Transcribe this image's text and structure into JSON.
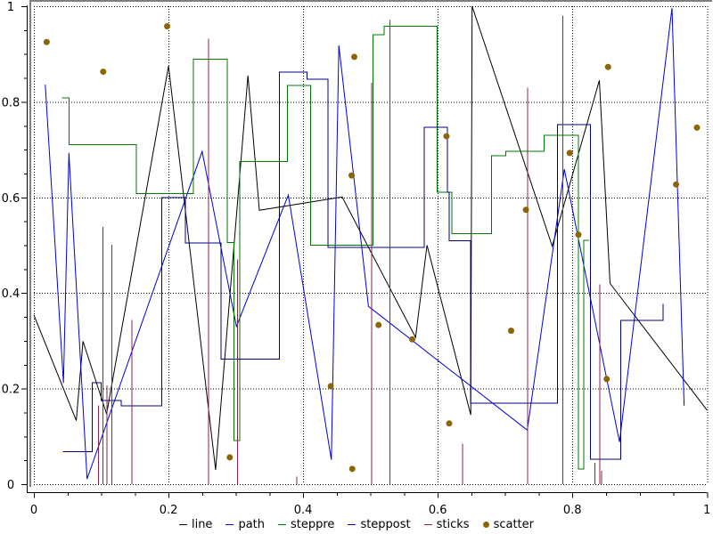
{
  "plot": {
    "frame_color": "#808080",
    "background": "#ffffff",
    "axis_color": "#000000",
    "grid_style": "dotted",
    "tick_label_fontsize": 13
  },
  "axes": {
    "x": {
      "min": 0,
      "max": 1,
      "ticks": [
        0,
        0.2,
        0.4,
        0.6,
        0.8,
        1
      ],
      "tick_labels": [
        "0",
        "0.2",
        "0.4",
        "0.6",
        "0.8",
        "1"
      ],
      "minor_step": 0.05
    },
    "y": {
      "min": 0,
      "max": 1,
      "ticks": [
        0,
        0.2,
        0.4,
        0.6,
        0.8,
        1
      ],
      "tick_labels": [
        "0",
        "0.2",
        "0.4",
        "0.6",
        "0.8",
        "1"
      ],
      "minor_step": 0.05
    }
  },
  "legend": {
    "items": [
      {
        "label": "line",
        "color": "#000000",
        "marker": "dash"
      },
      {
        "label": "path",
        "color": "#0000dd",
        "marker": "dash"
      },
      {
        "label": "steppre",
        "color": "#007700",
        "marker": "dash"
      },
      {
        "label": "steppost",
        "color": "#000080",
        "marker": "dash"
      },
      {
        "label": "sticks",
        "color": "#8b2252",
        "marker": "dash"
      },
      {
        "label": "scatter",
        "color": "#8b6508",
        "marker": "dot"
      }
    ]
  },
  "chart_data": {
    "type": "line",
    "title": "",
    "xlabel": "",
    "ylabel": "",
    "xlim": [
      0,
      1
    ],
    "ylim": [
      0,
      1
    ],
    "grid": "dotted-major",
    "legend_position": "bottom-center",
    "series": [
      {
        "name": "line",
        "style": "line",
        "color": "#000000",
        "points": [
          [
            0.0,
            0.354
          ],
          [
            0.063,
            0.133
          ],
          [
            0.073,
            0.299
          ],
          [
            0.108,
            0.147
          ],
          [
            0.2,
            0.875
          ],
          [
            0.27,
            0.03
          ],
          [
            0.318,
            0.855
          ],
          [
            0.335,
            0.573
          ],
          [
            0.458,
            0.601
          ],
          [
            0.567,
            0.307
          ],
          [
            0.584,
            0.5
          ],
          [
            0.649,
            0.145
          ],
          [
            0.651,
            1.0
          ],
          [
            0.77,
            0.498
          ],
          [
            0.84,
            0.845
          ],
          [
            0.856,
            0.42
          ],
          [
            1.0,
            0.155
          ]
        ]
      },
      {
        "name": "path",
        "style": "path",
        "color": "#0000dd",
        "points": [
          [
            0.017,
            0.836
          ],
          [
            0.044,
            0.212
          ],
          [
            0.052,
            0.693
          ],
          [
            0.079,
            0.011
          ],
          [
            0.25,
            0.696
          ],
          [
            0.301,
            0.33
          ],
          [
            0.378,
            0.605
          ],
          [
            0.442,
            0.051
          ],
          [
            0.453,
            0.918
          ],
          [
            0.497,
            0.372
          ],
          [
            0.733,
            0.113
          ],
          [
            0.788,
            0.659
          ],
          [
            0.87,
            0.088
          ],
          [
            0.948,
            0.996
          ],
          [
            0.966,
            0.164
          ]
        ]
      },
      {
        "name": "steppre",
        "style": "step",
        "color": "#007700",
        "points": [
          [
            0.042,
            0.808
          ],
          [
            0.052,
            0.71
          ],
          [
            0.152,
            0.608
          ],
          [
            0.237,
            0.889
          ],
          [
            0.287,
            0.506
          ],
          [
            0.297,
            0.091
          ],
          [
            0.306,
            0.675
          ],
          [
            0.377,
            0.834
          ],
          [
            0.411,
            0.5
          ],
          [
            0.504,
            0.94
          ],
          [
            0.52,
            0.958
          ],
          [
            0.599,
            0.611
          ],
          [
            0.621,
            0.524
          ],
          [
            0.68,
            0.687
          ],
          [
            0.701,
            0.696
          ],
          [
            0.758,
            0.73
          ],
          [
            0.809,
            0.032
          ],
          [
            0.817,
            0.51
          ],
          [
            0.825,
            0.51
          ]
        ]
      },
      {
        "name": "steppost",
        "style": "step",
        "color": "#000080",
        "points": [
          [
            0.043,
            0.068
          ],
          [
            0.087,
            0.212
          ],
          [
            0.1,
            0.175
          ],
          [
            0.13,
            0.164
          ],
          [
            0.19,
            0.6
          ],
          [
            0.225,
            0.505
          ],
          [
            0.278,
            0.262
          ],
          [
            0.365,
            0.862
          ],
          [
            0.406,
            0.847
          ],
          [
            0.437,
            0.495
          ],
          [
            0.58,
            0.747
          ],
          [
            0.614,
            0.611
          ],
          [
            0.617,
            0.509
          ],
          [
            0.649,
            0.169
          ],
          [
            0.778,
            0.752
          ],
          [
            0.827,
            0.052
          ],
          [
            0.872,
            0.343
          ],
          [
            0.935,
            0.377
          ]
        ]
      },
      {
        "name": "sticks",
        "style": "sticks",
        "color": "#8b2252",
        "points": [
          [
            0.095,
            0.165
          ],
          [
            0.102,
            0.538
          ],
          [
            0.108,
            0.207
          ],
          [
            0.115,
            0.501
          ],
          [
            0.145,
            0.344
          ],
          [
            0.259,
            0.932
          ],
          [
            0.302,
            0.47
          ],
          [
            0.39,
            0.016
          ],
          [
            0.501,
            0.84
          ],
          [
            0.528,
            0.971
          ],
          [
            0.636,
            0.085
          ],
          [
            0.733,
            0.83
          ],
          [
            0.785,
            0.98
          ],
          [
            0.833,
            0.045
          ],
          [
            0.84,
            0.418
          ],
          [
            0.843,
            0.028
          ]
        ]
      },
      {
        "name": "scatter",
        "style": "scatter",
        "color": "#8b6508",
        "points": [
          [
            0.019,
            0.925
          ],
          [
            0.103,
            0.863
          ],
          [
            0.198,
            0.958
          ],
          [
            0.291,
            0.056
          ],
          [
            0.441,
            0.205
          ],
          [
            0.472,
            0.646
          ],
          [
            0.473,
            0.032
          ],
          [
            0.476,
            0.894
          ],
          [
            0.512,
            0.333
          ],
          [
            0.562,
            0.303
          ],
          [
            0.613,
            0.728
          ],
          [
            0.617,
            0.127
          ],
          [
            0.709,
            0.321
          ],
          [
            0.731,
            0.574
          ],
          [
            0.796,
            0.693
          ],
          [
            0.809,
            0.522
          ],
          [
            0.851,
            0.22
          ],
          [
            0.853,
            0.873
          ],
          [
            0.954,
            0.627
          ],
          [
            0.985,
            0.746
          ]
        ]
      }
    ]
  }
}
